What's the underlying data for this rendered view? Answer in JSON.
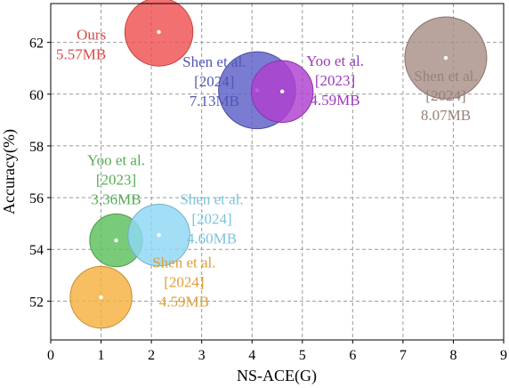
{
  "chart_data": {
    "type": "scatter",
    "xlabel": "NS-ACE(G)",
    "ylabel": "Accuracy(%)",
    "xlim": [
      0,
      9
    ],
    "ylim": [
      50.5,
      63.5
    ],
    "xticks": [
      "0",
      "1",
      "2",
      "3",
      "4",
      "5",
      "6",
      "7",
      "8",
      "9"
    ],
    "yticks": [
      "52",
      "54",
      "56",
      "58",
      "60",
      "62"
    ],
    "grid": true,
    "points": [
      {
        "x": 2.15,
        "y": 62.4,
        "size_mb": 5.57,
        "label_lines": [
          "Ours",
          "5.57MB"
        ],
        "color": "#f05050"
      },
      {
        "x": 4.1,
        "y": 60.15,
        "size_mb": 7.13,
        "label_lines": [
          "Shen et al.",
          "[2024]",
          "7.13MB"
        ],
        "color": "#5b5fc7"
      },
      {
        "x": 4.6,
        "y": 60.1,
        "size_mb": 4.59,
        "label_lines": [
          "Yoo et al.",
          "[2023]",
          "4.59MB"
        ],
        "color": "#b040d0"
      },
      {
        "x": 7.85,
        "y": 61.4,
        "size_mb": 8.07,
        "label_lines": [
          "Shen et al.",
          "[2024]",
          "8.07MB"
        ],
        "color": "#a89088"
      },
      {
        "x": 1.3,
        "y": 54.35,
        "size_mb": 3.36,
        "label_lines": [
          "Yoo et al.",
          "[2023]",
          "3.36MB"
        ],
        "color": "#5cc05c"
      },
      {
        "x": 2.15,
        "y": 54.55,
        "size_mb": 4.6,
        "label_lines": [
          "Shen et al.",
          "[2024]",
          "4.60MB"
        ],
        "color": "#8dd8f5"
      },
      {
        "x": 1.0,
        "y": 52.15,
        "size_mb": 4.59,
        "label_lines": [
          "Shen et al.",
          "[2024]",
          "4.59MB"
        ],
        "color": "#f7b040"
      }
    ]
  }
}
